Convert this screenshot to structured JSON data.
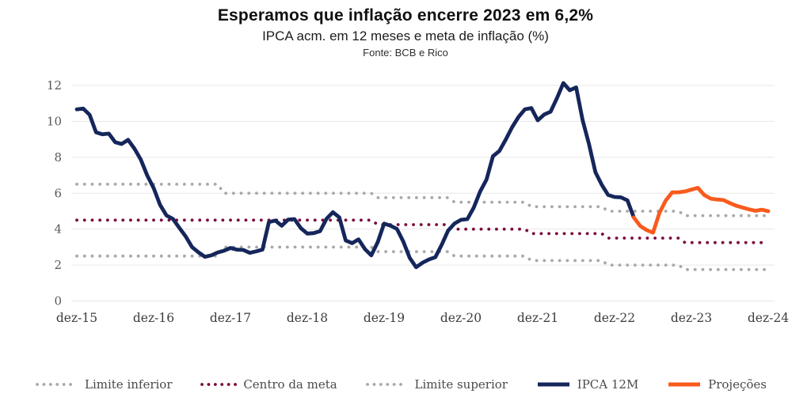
{
  "chart_data": {
    "type": "line",
    "title": "Esperamos que inflação encerre 2023 em 6,2%",
    "subtitle": "IPCA acm. em 12 meses e meta de inflação (%)",
    "source": "Fonte: BCB e Rico",
    "grid": "horizontal",
    "legend_position": "bottom",
    "ylim": [
      0,
      12
    ],
    "y_ticks": [
      0,
      2,
      4,
      6,
      8,
      10,
      12
    ],
    "x_axis": {
      "start": "dez-2015",
      "end": "dez-2024",
      "frequency": "monthly"
    },
    "x_ticks": [
      {
        "label": "dez-15",
        "month": 0
      },
      {
        "label": "dez-16",
        "month": 12
      },
      {
        "label": "dez-17",
        "month": 24
      },
      {
        "label": "dez-18",
        "month": 36
      },
      {
        "label": "dez-19",
        "month": 48
      },
      {
        "label": "dez-20",
        "month": 60
      },
      {
        "label": "dez-21",
        "month": 72
      },
      {
        "label": "dez-22",
        "month": 84
      },
      {
        "label": "dez-23",
        "month": 96
      },
      {
        "label": "dez-24",
        "month": 108
      }
    ],
    "series": [
      {
        "id": "limite-inferior",
        "name": "Limite inferior",
        "style": "dotted",
        "color_key": "limites",
        "steps": [
          {
            "from_month": 0,
            "to_month": 22,
            "value": 2.5
          },
          {
            "from_month": 23,
            "to_month": 46,
            "value": 3.0
          },
          {
            "from_month": 47,
            "to_month": 58,
            "value": 2.75
          },
          {
            "from_month": 59,
            "to_month": 70,
            "value": 2.5
          },
          {
            "from_month": 71,
            "to_month": 82,
            "value": 2.25
          },
          {
            "from_month": 83,
            "to_month": 94,
            "value": 2.0
          },
          {
            "from_month": 95,
            "to_month": 108,
            "value": 1.75
          }
        ]
      },
      {
        "id": "centro-da-meta",
        "name": "Centro da meta",
        "style": "dotted",
        "color_key": "centro_da_meta",
        "steps": [
          {
            "from_month": 0,
            "to_month": 46,
            "value": 4.5
          },
          {
            "from_month": 47,
            "to_month": 58,
            "value": 4.25
          },
          {
            "from_month": 59,
            "to_month": 70,
            "value": 4.0
          },
          {
            "from_month": 71,
            "to_month": 82,
            "value": 3.75
          },
          {
            "from_month": 83,
            "to_month": 94,
            "value": 3.5
          },
          {
            "from_month": 95,
            "to_month": 108,
            "value": 3.25
          }
        ]
      },
      {
        "id": "limite-superior",
        "name": "Limite superior",
        "style": "dotted",
        "color_key": "limites",
        "steps": [
          {
            "from_month": 0,
            "to_month": 22,
            "value": 6.5
          },
          {
            "from_month": 23,
            "to_month": 46,
            "value": 6.0
          },
          {
            "from_month": 47,
            "to_month": 58,
            "value": 5.75
          },
          {
            "from_month": 59,
            "to_month": 70,
            "value": 5.5
          },
          {
            "from_month": 71,
            "to_month": 82,
            "value": 5.25
          },
          {
            "from_month": 83,
            "to_month": 94,
            "value": 5.0
          },
          {
            "from_month": 95,
            "to_month": 108,
            "value": 4.75
          }
        ]
      },
      {
        "id": "ipca-12m",
        "name": "IPCA 12M",
        "style": "solid",
        "color_key": "ipca",
        "start_month": 0,
        "values": [
          10.67,
          10.71,
          10.36,
          9.39,
          9.28,
          9.32,
          8.84,
          8.74,
          8.97,
          8.48,
          7.87,
          6.99,
          6.29,
          5.35,
          4.76,
          4.57,
          4.08,
          3.6,
          3.0,
          2.71,
          2.46,
          2.54,
          2.7,
          2.8,
          2.95,
          2.86,
          2.84,
          2.68,
          2.76,
          2.86,
          4.39,
          4.48,
          4.19,
          4.53,
          4.56,
          4.05,
          3.75,
          3.78,
          3.89,
          4.58,
          4.94,
          4.66,
          3.37,
          3.22,
          3.43,
          2.89,
          2.54,
          3.27,
          4.31,
          4.19,
          4.01,
          3.3,
          2.4,
          1.88,
          2.13,
          2.31,
          2.44,
          3.14,
          3.92,
          4.31,
          4.52,
          4.56,
          5.2,
          6.1,
          6.76,
          8.06,
          8.35,
          8.99,
          9.68,
          10.25,
          10.67,
          10.74,
          10.06,
          10.38,
          10.54,
          11.3,
          12.13,
          11.73,
          11.89,
          10.07,
          8.73,
          7.17,
          6.47,
          5.9,
          5.79,
          5.77,
          5.6,
          4.65
        ]
      },
      {
        "id": "projecoes",
        "name": "Projeções",
        "style": "solid",
        "color_key": "projecoes",
        "start_month": 87,
        "values": [
          4.65,
          4.18,
          3.95,
          3.8,
          4.9,
          5.6,
          6.05,
          6.05,
          6.1,
          6.2,
          6.3,
          5.9,
          5.7,
          5.65,
          5.62,
          5.45,
          5.3,
          5.2,
          5.1,
          5.02,
          5.08,
          5.0
        ]
      }
    ]
  },
  "colors": {
    "ipca": "#15265b",
    "projecoes": "#f95b1d",
    "centro_da_meta": "#7a0d3c",
    "limites": "#a9a9a9",
    "gridline": "#e7e7e7",
    "title_text": "#101010",
    "legend_text": "#4a4a4a"
  }
}
